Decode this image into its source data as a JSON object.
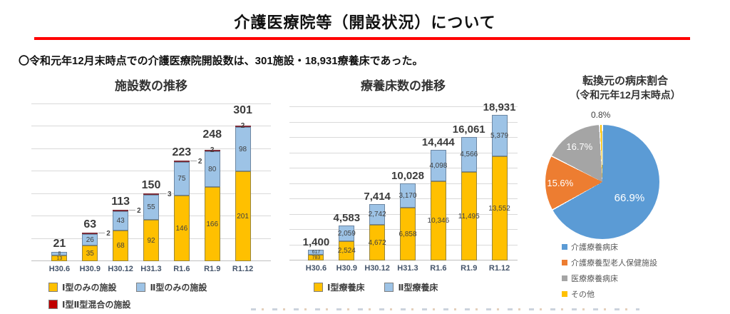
{
  "page": {
    "title": "介護医療院等（開設状況）について",
    "subtitle": "〇令和元年12月末時点での介護医療院開設数は、301施設・18,931療養床であった。",
    "accent_color": "#FF0000"
  },
  "chart_data": [
    {
      "type": "bar",
      "title": "施設数の推移",
      "stacked": true,
      "xlabel": "",
      "ylabel": "",
      "categories": [
        "H30.6",
        "H30.9",
        "H30.12",
        "H31.3",
        "R1.6",
        "R1.9",
        "R1.12"
      ],
      "series": [
        {
          "name": "Ⅰ型のみの施設",
          "color": "#FFC000",
          "values": [
            13,
            35,
            68,
            92,
            146,
            166,
            201
          ]
        },
        {
          "name": "Ⅱ型のみの施設",
          "color": "#9DC3E6",
          "values": [
            8,
            26,
            43,
            55,
            75,
            80,
            98
          ]
        },
        {
          "name": "Ⅰ型Ⅱ型混合の施設",
          "color": "#C00000",
          "values": [
            0,
            2,
            2,
            3,
            2,
            2,
            2
          ]
        }
      ],
      "totals": [
        21,
        63,
        113,
        150,
        223,
        248,
        301
      ],
      "ylim": [
        0,
        350
      ],
      "grid_step": 50,
      "grid": true,
      "legend_position": "bottom",
      "legend_rows": [
        [
          0,
          1
        ],
        [
          2
        ]
      ],
      "mixed_series": 2,
      "mixed_label_side": [
        "",
        "right",
        "right",
        "right",
        "right",
        "top",
        "top"
      ]
    },
    {
      "type": "bar",
      "title": "療養床数の推移",
      "stacked": true,
      "xlabel": "",
      "ylabel": "",
      "categories": [
        "H30.6",
        "H30.9",
        "H30.12",
        "H31.3",
        "R1.6",
        "R1.9",
        "R1.12"
      ],
      "series": [
        {
          "name": "Ⅰ型療養床",
          "color": "#FFC000",
          "values": [
            783,
            2524,
            4672,
            6858,
            10346,
            11495,
            13552
          ]
        },
        {
          "name": "Ⅱ型療養床",
          "color": "#9DC3E6",
          "values": [
            617,
            2059,
            2742,
            3170,
            4098,
            4566,
            5379
          ]
        }
      ],
      "totals": [
        1400,
        4583,
        7414,
        10028,
        14444,
        16061,
        18931
      ],
      "ylim": [
        0,
        20000
      ],
      "grid_step": 2000,
      "grid": true,
      "legend_position": "bottom",
      "legend_rows": [
        [
          0,
          1
        ]
      ],
      "mixed_series": null,
      "mixed_label_side": [
        "",
        "",
        "",
        "",
        "",
        "",
        ""
      ]
    },
    {
      "type": "pie",
      "title": "転換元の病床割合",
      "subtitle": "（令和元年12月末時点）",
      "legend_position": "bottom-right",
      "slices": [
        {
          "label": "介護療養病床",
          "value": 66.9,
          "color": "#5B9BD5",
          "text_color": "#FFFFFF",
          "label_radius": 0.55
        },
        {
          "label": "介護療養型老人保健施設",
          "value": 15.6,
          "color": "#ED7D31",
          "text_color": "#FFFFFF",
          "label_radius": 0.74
        },
        {
          "label": "医療療養病床",
          "value": 16.7,
          "color": "#A5A5A5",
          "text_color": "#FFFFFF",
          "label_radius": 0.74
        },
        {
          "label": "その他",
          "value": 0.8,
          "color": "#FFC000",
          "text_color": "#404040",
          "label_radius": 1.18
        }
      ]
    }
  ]
}
